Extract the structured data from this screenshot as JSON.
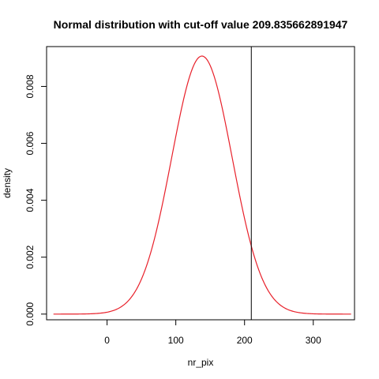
{
  "chart_data": {
    "type": "line",
    "title": "Normal distribution with cut-off value 209.835662891947",
    "xlabel": "nr_pix",
    "ylabel": "density",
    "xlim": [
      -88,
      360
    ],
    "ylim": [
      -0.0002,
      0.0094
    ],
    "x_ticks": [
      0,
      100,
      200,
      300
    ],
    "y_ticks": [
      0.0,
      0.002,
      0.004,
      0.006,
      0.008
    ],
    "y_tick_labels": [
      "0.000",
      "0.002",
      "0.004",
      "0.006",
      "0.008"
    ],
    "series": [
      {
        "distribution": "normal",
        "mean": 138,
        "sd": 44,
        "x_range": [
          -78,
          355
        ],
        "color": "#e8202a"
      }
    ],
    "cutoff": {
      "x": 209.835662891947,
      "color": "#000000"
    },
    "grid": false,
    "legend": "none"
  }
}
